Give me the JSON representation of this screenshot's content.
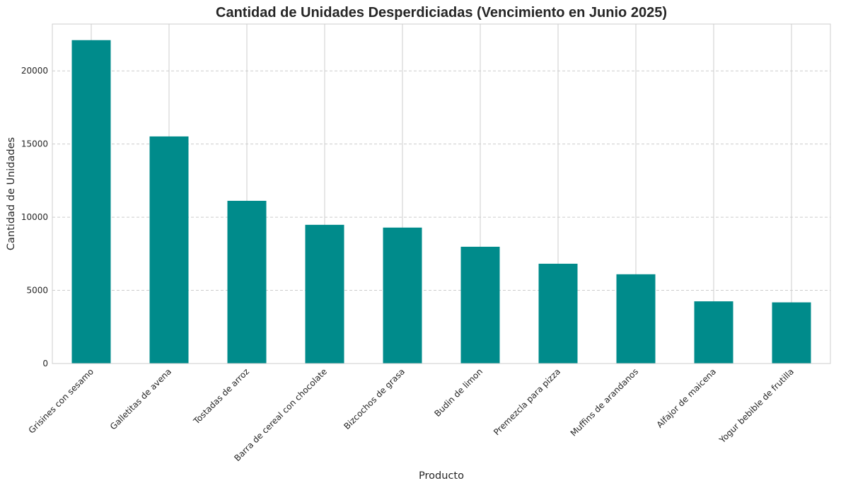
{
  "chart_data": {
    "type": "bar",
    "title": "Cantidad de Unidades Desperdiciadas (Vencimiento en Junio 2025)",
    "xlabel": "Producto",
    "ylabel": "Cantidad de Unidades",
    "categories": [
      "Grisines con sesamo",
      "Galletitas de avena",
      "Tostadas de arroz",
      "Barra de cereal con chocolate",
      "Bizcochos de grasa",
      "Budin de limon",
      "Premezcla para pizza",
      "Muffins de arandanos",
      "Alfajor de maicena",
      "Yogur bebible de frutilla"
    ],
    "values": [
      22100,
      15520,
      11120,
      9480,
      9290,
      7980,
      6820,
      6100,
      4250,
      4180
    ],
    "ylim": [
      0,
      23200
    ],
    "yticks": [
      0,
      5000,
      10000,
      15000,
      20000
    ],
    "ytick_labels": [
      "0",
      "5000",
      "10000",
      "15000",
      "20000"
    ],
    "grid": true,
    "bar_color": "#008b8b",
    "grid_color": "#cccccc"
  }
}
